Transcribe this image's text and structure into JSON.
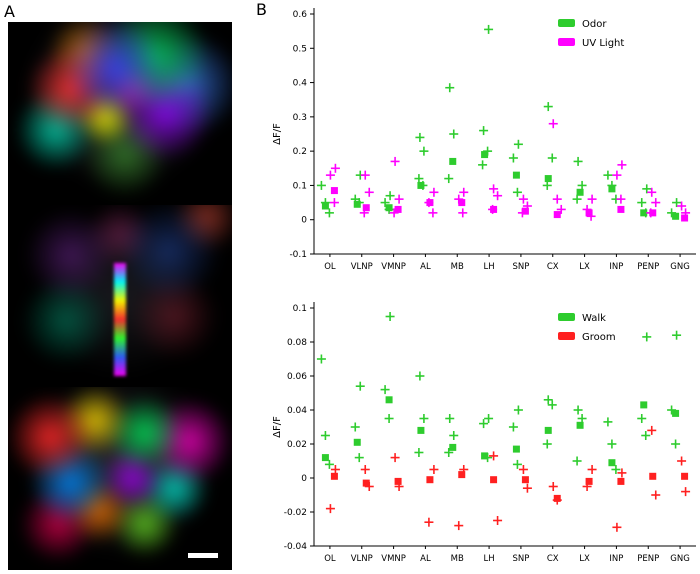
{
  "figure": {
    "panel_a_label": "A",
    "panel_b_label": "B",
    "scale_bar": "white scale bar"
  },
  "colors": {
    "odor_walk_green": "#2ecc2e",
    "uv_magenta": "#ff00ff",
    "groom_red": "#ff2020",
    "axis": "#000000"
  },
  "chart_data": [
    {
      "type": "scatter",
      "title": "",
      "xlabel": "",
      "ylabel": "ΔF/F",
      "ylim": [
        -0.1,
        0.6
      ],
      "yticks": [
        "0.6",
        "0.5",
        "0.4",
        "0.3",
        "0.2",
        "0.1",
        "0",
        "-0.1"
      ],
      "ytick_values": [
        0.6,
        0.5,
        0.4,
        0.3,
        0.2,
        0.1,
        0,
        -0.1
      ],
      "categories": [
        "OL",
        "VLNP",
        "VMNP",
        "AL",
        "MB",
        "LH",
        "SNP",
        "CX",
        "LX",
        "INP",
        "PENP",
        "GNG"
      ],
      "grid": false,
      "legend_position": "top-right",
      "legend": [
        {
          "label": "Odor",
          "color": "#2ecc2e"
        },
        {
          "label": "UV Light",
          "color": "#ff00ff"
        }
      ],
      "series": [
        {
          "name": "Odor",
          "color": "#2ecc2e",
          "marker": "plus",
          "median_marker": "square",
          "values": [
            [
              0.1,
              0.05,
              0.02
            ],
            [
              0.13,
              0.06,
              0.05
            ],
            [
              0.07,
              0.05,
              0.03
            ],
            [
              0.24,
              0.2,
              0.12,
              0.1
            ],
            [
              0.385,
              0.25,
              0.12
            ],
            [
              0.555,
              0.26,
              0.2,
              0.16
            ],
            [
              0.22,
              0.18,
              0.08
            ],
            [
              0.33,
              0.18,
              0.1
            ],
            [
              0.17,
              0.1,
              0.06
            ],
            [
              0.13,
              0.1,
              0.06
            ],
            [
              0.09,
              0.05,
              0.02
            ],
            [
              0.05,
              0.02
            ]
          ],
          "medians": [
            0.04,
            0.045,
            0.035,
            0.1,
            0.17,
            0.19,
            0.13,
            0.12,
            0.08,
            0.09,
            0.02,
            0.01
          ]
        },
        {
          "name": "UV Light",
          "color": "#ff00ff",
          "marker": "plus",
          "median_marker": "square",
          "values": [
            [
              0.15,
              0.13,
              0.05
            ],
            [
              0.13,
              0.08,
              0.02
            ],
            [
              0.17,
              0.06,
              0.02
            ],
            [
              0.08,
              0.05,
              0.02
            ],
            [
              0.08,
              0.06,
              0.02
            ],
            [
              0.09,
              0.07,
              0.03
            ],
            [
              0.06,
              0.04,
              0.02
            ],
            [
              0.28,
              0.06,
              0.03
            ],
            [
              0.06,
              0.03,
              0.01
            ],
            [
              0.16,
              0.13,
              0.06
            ],
            [
              0.08,
              0.05,
              0.02
            ],
            [
              0.04,
              0.02
            ]
          ],
          "medians": [
            0.085,
            0.035,
            0.03,
            0.05,
            0.05,
            0.03,
            0.025,
            0.015,
            0.02,
            0.03,
            0.02,
            0.005
          ]
        }
      ]
    },
    {
      "type": "scatter",
      "title": "",
      "xlabel": "",
      "ylabel": "ΔF/F",
      "ylim": [
        -0.04,
        0.1
      ],
      "yticks": [
        "0.1",
        "0.08",
        "0.06",
        "0.04",
        "0.02",
        "0",
        "-0.02",
        "-0.04"
      ],
      "ytick_values": [
        0.1,
        0.08,
        0.06,
        0.04,
        0.02,
        0,
        -0.02,
        -0.04
      ],
      "categories": [
        "OL",
        "VLNP",
        "VMNP",
        "AL",
        "MB",
        "LH",
        "SNP",
        "CX",
        "LX",
        "INP",
        "PENP",
        "GNG"
      ],
      "grid": false,
      "legend_position": "top-right",
      "legend": [
        {
          "label": "Walk",
          "color": "#2ecc2e"
        },
        {
          "label": "Groom",
          "color": "#ff2020"
        }
      ],
      "series": [
        {
          "name": "Walk",
          "color": "#2ecc2e",
          "marker": "plus",
          "median_marker": "square",
          "values": [
            [
              0.07,
              0.025,
              0.008
            ],
            [
              0.054,
              0.03,
              0.012
            ],
            [
              0.095,
              0.052,
              0.035
            ],
            [
              0.06,
              0.035,
              0.015
            ],
            [
              0.035,
              0.025,
              0.015
            ],
            [
              0.035,
              0.032,
              0.012
            ],
            [
              0.04,
              0.03,
              0.008
            ],
            [
              0.046,
              0.043,
              0.02
            ],
            [
              0.04,
              0.035,
              0.01
            ],
            [
              0.033,
              0.02,
              0.005
            ],
            [
              0.083,
              0.035,
              0.025
            ],
            [
              0.084,
              0.04,
              0.02
            ]
          ],
          "medians": [
            0.012,
            0.021,
            0.046,
            0.028,
            0.018,
            0.013,
            0.017,
            0.028,
            0.031,
            0.009,
            0.043,
            0.038
          ]
        },
        {
          "name": "Groom",
          "color": "#ff2020",
          "marker": "plus",
          "median_marker": "square",
          "values": [
            [
              0.005,
              -0.018
            ],
            [
              0.005,
              -0.005
            ],
            [
              0.012,
              -0.005
            ],
            [
              0.005,
              -0.026
            ],
            [
              0.005,
              -0.028
            ],
            [
              0.013,
              -0.025
            ],
            [
              0.005,
              -0.006
            ],
            [
              -0.005,
              -0.013
            ],
            [
              0.005,
              -0.005
            ],
            [
              0.003,
              -0.029
            ],
            [
              0.028,
              -0.01
            ],
            [
              0.01,
              -0.008
            ]
          ],
          "medians": [
            0.001,
            -0.003,
            -0.002,
            -0.001,
            0.002,
            -0.001,
            -0.001,
            -0.012,
            -0.002,
            -0.002,
            0.001,
            0.001
          ]
        }
      ]
    }
  ]
}
